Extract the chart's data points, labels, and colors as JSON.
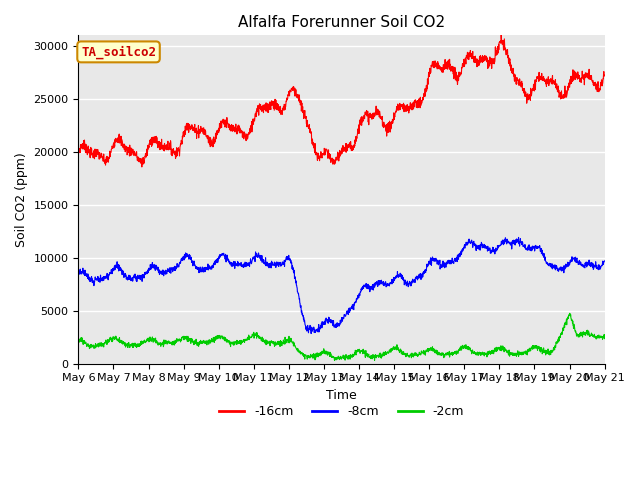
{
  "title": "Alfalfa Forerunner Soil CO2",
  "xlabel": "Time",
  "ylabel": "Soil CO2 (ppm)",
  "annotation": "TA_soilco2",
  "ylim": [
    0,
    31000
  ],
  "yticks": [
    0,
    5000,
    10000,
    15000,
    20000,
    25000,
    30000
  ],
  "x_tick_labels": [
    "May 6",
    "May 7",
    "May 8",
    "May 9",
    "May 10",
    "May 11",
    "May 12",
    "May 13",
    "May 14",
    "May 15",
    "May 16",
    "May 17",
    "May 18",
    "May 19",
    "May 20",
    "May 21"
  ],
  "series": {
    "red": {
      "label": "-16cm",
      "color": "#ff0000"
    },
    "blue": {
      "label": "-8cm",
      "color": "#0000ff"
    },
    "green": {
      "label": "-2cm",
      "color": "#00cc00"
    }
  },
  "bg_color": "#e8e8e8",
  "fig_bg_color": "#ffffff",
  "title_fontsize": 11,
  "axis_label_fontsize": 9,
  "tick_fontsize": 8,
  "legend_fontsize": 9,
  "annotation_facecolor": "#ffffcc",
  "annotation_edgecolor": "#cc8800",
  "annotation_textcolor": "#cc0000"
}
